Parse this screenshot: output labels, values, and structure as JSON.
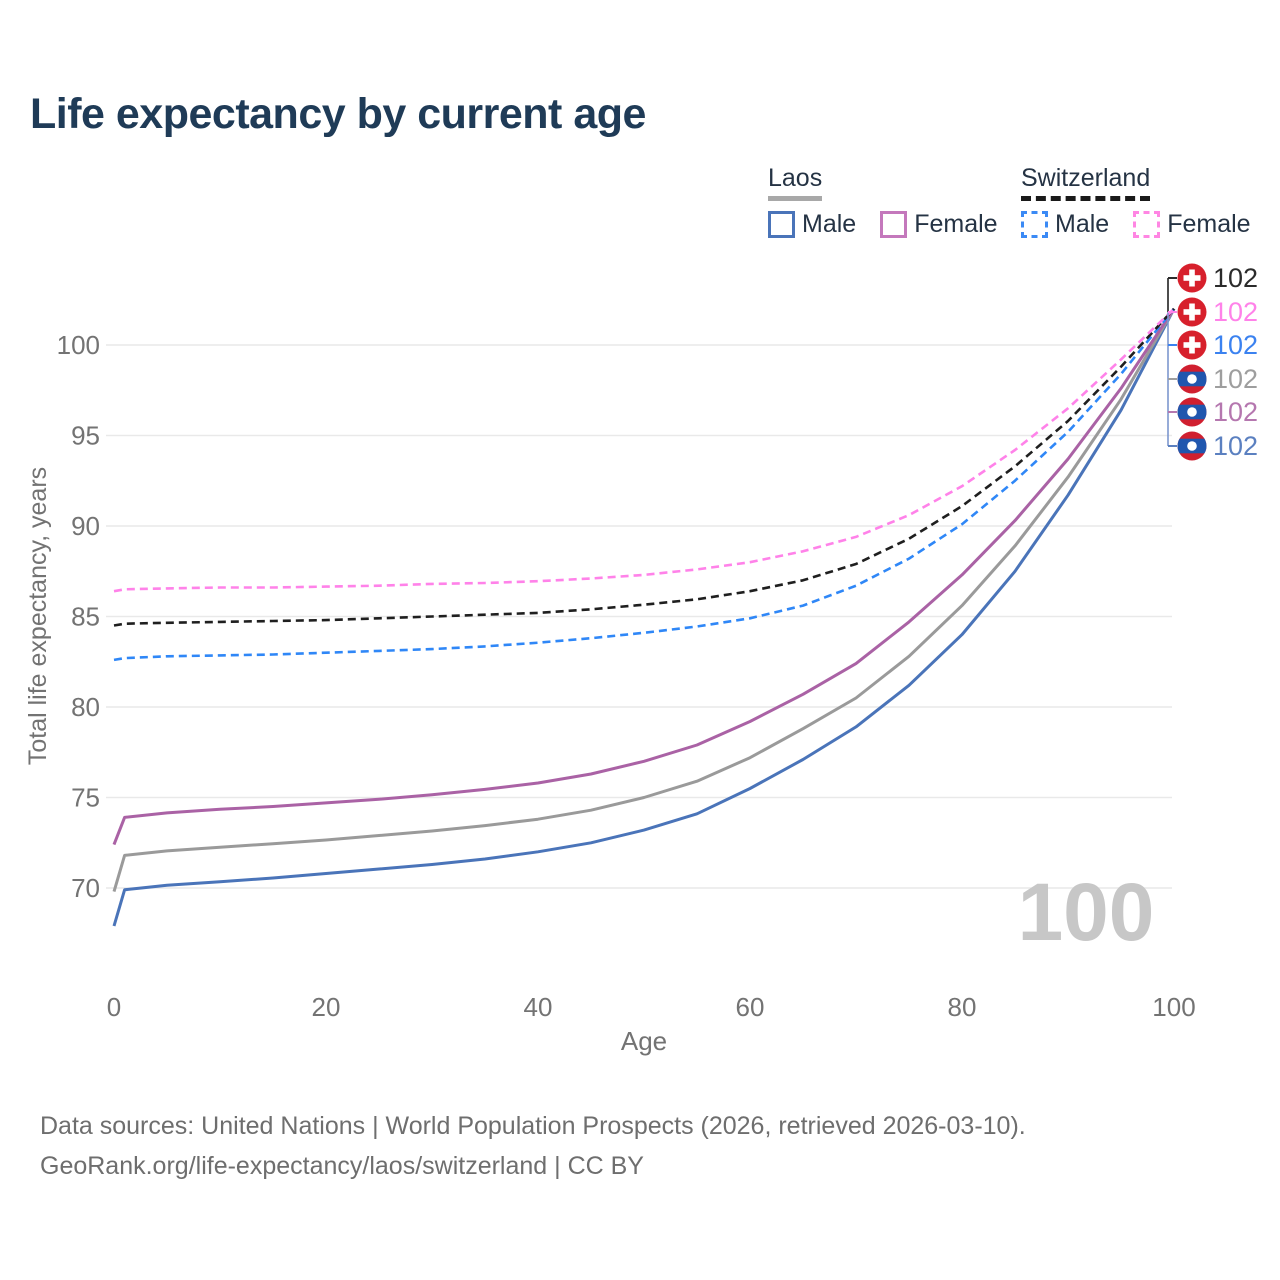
{
  "title": "Life expectancy by current age",
  "legend": {
    "groups": [
      {
        "id": "laos",
        "label": "Laos",
        "underline_style": "solid",
        "underline_color": "#a8a8a8",
        "items": [
          {
            "id": "laos-male",
            "label": "Male",
            "swatch_color": "#4a74b9",
            "swatch_style": "solid"
          },
          {
            "id": "laos-female",
            "label": "Female",
            "swatch_color": "#c478bc",
            "swatch_style": "solid"
          }
        ]
      },
      {
        "id": "switzerland",
        "label": "Switzerland",
        "underline_style": "dashed",
        "underline_color": "#1a1a1a",
        "items": [
          {
            "id": "switzerland-male",
            "label": "Male",
            "swatch_color": "#3b8af5",
            "swatch_style": "dashed"
          },
          {
            "id": "switzerland-female",
            "label": "Female",
            "swatch_color": "#ff86e3",
            "swatch_style": "dashed"
          }
        ]
      }
    ]
  },
  "chart_data": {
    "type": "line",
    "title": "Life expectancy by current age",
    "xlabel": "Age",
    "ylabel": "Total life expectancy, years",
    "x_ticks": [
      0,
      20,
      40,
      60,
      80,
      100
    ],
    "y_ticks": [
      70,
      75,
      80,
      85,
      90,
      95,
      100
    ],
    "xlim": [
      0,
      100
    ],
    "ylim": [
      66,
      103
    ],
    "grid": "horizontal",
    "legend_position": "top-right",
    "x": [
      0,
      1,
      5,
      10,
      15,
      20,
      25,
      30,
      35,
      40,
      45,
      50,
      55,
      60,
      65,
      70,
      75,
      80,
      85,
      90,
      95,
      100
    ],
    "series": [
      {
        "id": "laos-male",
        "name": "Laos Male",
        "country": "Laos",
        "style": "solid",
        "color": "#4a74b9",
        "values": [
          67.9,
          69.9,
          70.15,
          70.35,
          70.55,
          70.8,
          71.05,
          71.3,
          71.6,
          72.0,
          72.5,
          73.2,
          74.1,
          75.5,
          77.1,
          78.9,
          81.2,
          84.0,
          87.5,
          91.7,
          96.4,
          102
        ]
      },
      {
        "id": "laos-all",
        "name": "Laos (all)",
        "country": "Laos",
        "style": "solid",
        "color": "#9a9a9a",
        "values": [
          69.8,
          71.8,
          72.05,
          72.25,
          72.45,
          72.65,
          72.9,
          73.15,
          73.45,
          73.8,
          74.3,
          75.0,
          75.9,
          77.2,
          78.8,
          80.5,
          82.8,
          85.6,
          88.9,
          92.7,
          97.0,
          102
        ]
      },
      {
        "id": "laos-female",
        "name": "Laos Female",
        "country": "Laos",
        "style": "solid",
        "color": "#aa62a5",
        "values": [
          72.4,
          73.9,
          74.15,
          74.35,
          74.5,
          74.7,
          74.9,
          75.15,
          75.45,
          75.8,
          76.3,
          77.0,
          77.9,
          79.2,
          80.7,
          82.4,
          84.7,
          87.3,
          90.3,
          93.7,
          97.6,
          102
        ]
      },
      {
        "id": "switzerland-male",
        "name": "Switzerland Male",
        "country": "Switzerland",
        "style": "dashed",
        "color": "#2f87f7",
        "values": [
          82.6,
          82.7,
          82.8,
          82.85,
          82.9,
          83.0,
          83.1,
          83.2,
          83.35,
          83.55,
          83.8,
          84.1,
          84.45,
          84.9,
          85.6,
          86.7,
          88.2,
          90.1,
          92.5,
          95.2,
          98.4,
          102
        ]
      },
      {
        "id": "switzerland-all",
        "name": "Switzerland (all)",
        "country": "Switzerland",
        "style": "dashed",
        "color": "#1f1f1f",
        "values": [
          84.5,
          84.6,
          84.65,
          84.7,
          84.75,
          84.8,
          84.9,
          85.0,
          85.1,
          85.2,
          85.4,
          85.65,
          85.95,
          86.4,
          87.0,
          87.9,
          89.3,
          91.1,
          93.3,
          95.8,
          98.8,
          102
        ]
      },
      {
        "id": "switzerland-female",
        "name": "Switzerland Female",
        "country": "Switzerland",
        "style": "dashed",
        "color": "#ff82e9",
        "values": [
          86.4,
          86.5,
          86.55,
          86.6,
          86.6,
          86.65,
          86.7,
          86.8,
          86.85,
          86.95,
          87.1,
          87.3,
          87.6,
          88.0,
          88.6,
          89.4,
          90.6,
          92.2,
          94.2,
          96.5,
          99.2,
          102
        ]
      }
    ],
    "end_labels": [
      {
        "flag": "switzerland",
        "value": "102",
        "color": "#2b2b2b"
      },
      {
        "flag": "switzerland",
        "value": "102",
        "color": "#ff82e9"
      },
      {
        "flag": "switzerland",
        "value": "102",
        "color": "#3b82f0"
      },
      {
        "flag": "laos",
        "value": "102",
        "color": "#9e9e9e"
      },
      {
        "flag": "laos",
        "value": "102",
        "color": "#b577af"
      },
      {
        "flag": "laos",
        "value": "102",
        "color": "#5b80c0"
      }
    ],
    "current_age_indicator": "100"
  },
  "footer": {
    "line1": "Data sources: United Nations | World Population Prospects (2026, retrieved 2026-03-10).",
    "line2": "GeoRank.org/life-expectancy/laos/switzerland | CC BY"
  },
  "colors": {
    "title": "#1f3b57",
    "axis_text": "#737373",
    "gridline": "#e9e9e9",
    "watermark": "#c7c7c7",
    "footer_text": "#6e6e6e",
    "swiss_flag_red": "#d7202c",
    "laos_flag_red": "#d01f2f",
    "laos_flag_blue": "#2056ae"
  }
}
